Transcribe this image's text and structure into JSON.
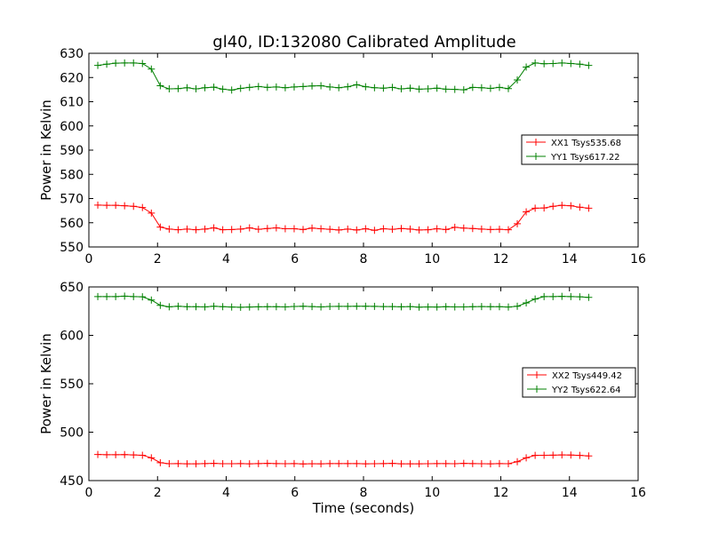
{
  "title": "gl40, ID:132080 Calibrated Amplitude",
  "chart_data": [
    {
      "type": "line",
      "ylabel": "Power in Kelvin",
      "xlabel": "",
      "xlim": [
        0,
        16
      ],
      "ylim": [
        550,
        630
      ],
      "xticks": [
        0,
        2,
        4,
        6,
        8,
        10,
        12,
        14,
        16
      ],
      "yticks": [
        550,
        560,
        570,
        580,
        590,
        600,
        610,
        620,
        630
      ],
      "grid": false,
      "legend_position": "right",
      "x": [
        0.26,
        0.52,
        0.78,
        1.04,
        1.3,
        1.56,
        1.82,
        2.08,
        2.34,
        2.6,
        2.86,
        3.12,
        3.38,
        3.64,
        3.9,
        4.16,
        4.42,
        4.68,
        4.94,
        5.2,
        5.46,
        5.72,
        5.98,
        6.24,
        6.5,
        6.76,
        7.02,
        7.28,
        7.54,
        7.8,
        8.06,
        8.32,
        8.58,
        8.84,
        9.1,
        9.36,
        9.62,
        9.88,
        10.14,
        10.4,
        10.66,
        10.92,
        11.18,
        11.44,
        11.7,
        11.96,
        12.22,
        12.48,
        12.74,
        13.0,
        13.26,
        13.52,
        13.78,
        14.04,
        14.3,
        14.56
      ],
      "series": [
        {
          "name": "XX1 Tsys535.68",
          "color": "#ff0000",
          "values": [
            567.3,
            567.2,
            567.2,
            567.0,
            566.8,
            566.3,
            564.0,
            558.2,
            557.4,
            557.1,
            557.4,
            557.1,
            557.4,
            557.9,
            557.1,
            557.2,
            557.4,
            557.9,
            557.3,
            557.6,
            557.9,
            557.5,
            557.5,
            557.2,
            557.8,
            557.5,
            557.3,
            557.0,
            557.4,
            557.0,
            557.5,
            556.9,
            557.5,
            557.3,
            557.6,
            557.4,
            557.0,
            557.1,
            557.5,
            557.2,
            558.1,
            557.8,
            557.6,
            557.4,
            557.2,
            557.3,
            557.1,
            559.6,
            564.5,
            566.0,
            566.1,
            566.8,
            567.2,
            567.0,
            566.4,
            566.0
          ]
        },
        {
          "name": "YY1 Tsys617.22",
          "color": "#008000",
          "values": [
            625.0,
            625.5,
            625.9,
            626.0,
            626.0,
            625.8,
            623.5,
            616.6,
            615.3,
            615.4,
            615.8,
            615.3,
            615.8,
            616.0,
            615.2,
            614.8,
            615.5,
            615.9,
            616.3,
            615.9,
            616.1,
            615.8,
            616.1,
            616.3,
            616.5,
            616.6,
            616.1,
            615.8,
            616.2,
            617.0,
            616.2,
            615.8,
            615.6,
            615.9,
            615.3,
            615.6,
            615.2,
            615.3,
            615.6,
            615.2,
            615.1,
            614.9,
            615.9,
            615.8,
            615.5,
            615.9,
            615.4,
            619.0,
            624.3,
            626.0,
            625.7,
            625.8,
            626.0,
            625.8,
            625.5,
            625.0
          ]
        }
      ]
    },
    {
      "type": "line",
      "ylabel": "Power in Kelvin",
      "xlabel": "Time (seconds)",
      "xlim": [
        0,
        16
      ],
      "ylim": [
        450,
        650
      ],
      "xticks": [
        0,
        2,
        4,
        6,
        8,
        10,
        12,
        14,
        16
      ],
      "yticks": [
        450,
        500,
        550,
        600,
        650
      ],
      "grid": false,
      "legend_position": "right",
      "x": [
        0.26,
        0.52,
        0.78,
        1.04,
        1.3,
        1.56,
        1.82,
        2.08,
        2.34,
        2.6,
        2.86,
        3.12,
        3.38,
        3.64,
        3.9,
        4.16,
        4.42,
        4.68,
        4.94,
        5.2,
        5.46,
        5.72,
        5.98,
        6.24,
        6.5,
        6.76,
        7.02,
        7.28,
        7.54,
        7.8,
        8.06,
        8.32,
        8.58,
        8.84,
        9.1,
        9.36,
        9.62,
        9.88,
        10.14,
        10.4,
        10.66,
        10.92,
        11.18,
        11.44,
        11.7,
        11.96,
        12.22,
        12.48,
        12.74,
        13.0,
        13.26,
        13.52,
        13.78,
        14.04,
        14.3,
        14.56
      ],
      "series": [
        {
          "name": "XX2 Tsys449.42",
          "color": "#ff0000",
          "values": [
            477.0,
            476.7,
            476.7,
            476.8,
            476.5,
            476.2,
            473.5,
            468.5,
            467.4,
            467.6,
            467.3,
            467.3,
            467.6,
            467.8,
            467.4,
            467.4,
            467.5,
            467.3,
            467.6,
            467.8,
            467.6,
            467.4,
            467.6,
            467.2,
            467.4,
            467.3,
            467.6,
            467.5,
            467.6,
            467.5,
            467.3,
            467.4,
            467.5,
            467.8,
            467.3,
            467.3,
            467.3,
            467.4,
            467.5,
            467.6,
            467.4,
            467.8,
            467.6,
            467.4,
            467.3,
            467.5,
            467.4,
            469.5,
            473.5,
            476.0,
            476.2,
            476.3,
            476.5,
            476.4,
            476.0,
            475.5
          ]
        },
        {
          "name": "YY2 Tsys622.64",
          "color": "#008000",
          "values": [
            640.0,
            640.0,
            640.0,
            640.5,
            640.0,
            639.8,
            636.5,
            631.0,
            629.5,
            630.0,
            629.6,
            629.6,
            629.4,
            630.0,
            629.6,
            629.2,
            629.0,
            629.2,
            629.5,
            629.6,
            629.6,
            629.4,
            629.8,
            630.0,
            629.7,
            629.4,
            629.8,
            629.9,
            629.9,
            630.1,
            630.0,
            629.9,
            629.7,
            629.7,
            629.5,
            629.7,
            629.1,
            629.3,
            629.2,
            629.6,
            629.4,
            629.4,
            629.6,
            629.7,
            629.6,
            629.6,
            629.2,
            630.0,
            633.5,
            637.5,
            640.0,
            640.0,
            640.2,
            640.0,
            639.8,
            639.2
          ]
        }
      ]
    }
  ]
}
